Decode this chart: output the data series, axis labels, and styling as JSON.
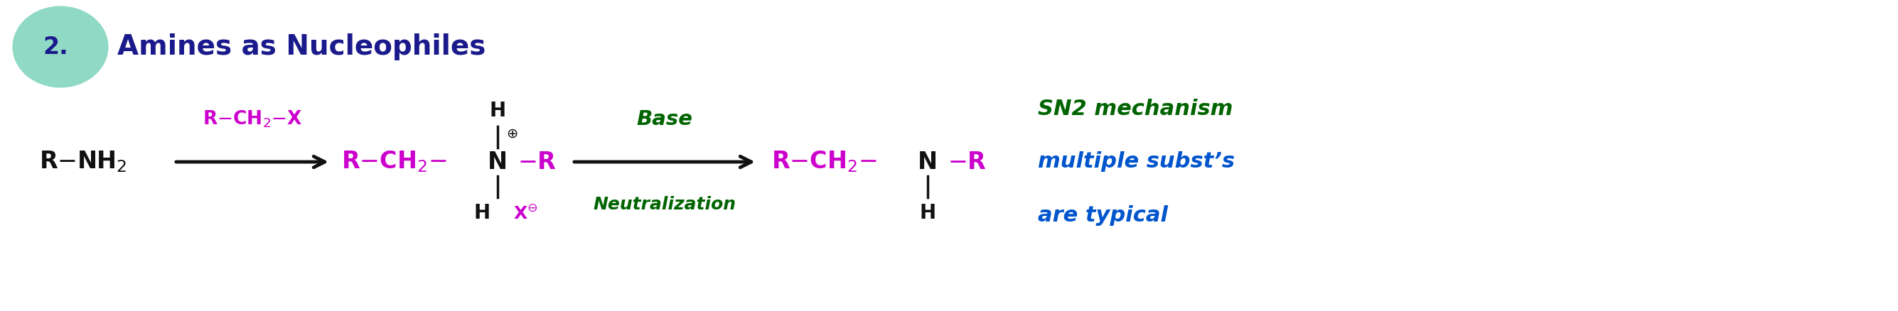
{
  "bg_color": "#ffffff",
  "title_number": "2.",
  "title_text": "Amines as Nucleophiles",
  "title_color": "#1a1a8c",
  "oval_color": "#8fd9c5",
  "reagent_color": "#cc00cc",
  "black_color": "#111111",
  "green_color": "#006400",
  "note_green_color": "#006400",
  "note_blue_color": "#0055cc",
  "note_line1": "SN2 mechanism",
  "note_line2": "multiple subst’s",
  "note_line3": "are typical"
}
